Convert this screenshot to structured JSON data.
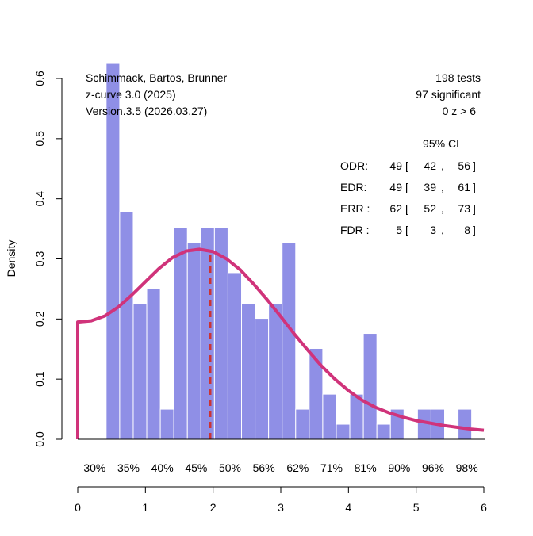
{
  "chart_data": {
    "type": "bar",
    "title": "",
    "xlabel": "",
    "ylabel": "Density",
    "xlim": [
      0,
      6
    ],
    "ylim": [
      0,
      0.6
    ],
    "x_ticks": [
      "0",
      "1",
      "2",
      "3",
      "4",
      "5",
      "6"
    ],
    "y_ticks": [
      "0.0",
      "0.1",
      "0.2",
      "0.3",
      "0.4",
      "0.5",
      "0.6"
    ],
    "grid": false,
    "bar_color": "#8f8fe6",
    "curve_color": "#d0337a",
    "dashed_color": "#cc3333",
    "histogram": {
      "bin_start": 0.42,
      "bin_width": 0.2,
      "values": [
        0.625,
        0.378,
        0.226,
        0.251,
        0.05,
        0.352,
        0.327,
        0.352,
        0.352,
        0.277,
        0.226,
        0.201,
        0.226,
        0.327,
        0.05,
        0.151,
        0.075,
        0.025,
        0.075,
        0.176,
        0.025,
        0.05,
        0,
        0.05,
        0.05,
        0,
        0.05
      ]
    },
    "curve": {
      "x": [
        0,
        0.2,
        0.4,
        0.6,
        0.8,
        1.0,
        1.2,
        1.4,
        1.6,
        1.8,
        2.0,
        2.2,
        2.4,
        2.6,
        2.8,
        3.0,
        3.2,
        3.4,
        3.6,
        3.8,
        4.0,
        4.2,
        4.4,
        4.6,
        4.8,
        5.0,
        5.2,
        5.4,
        5.6,
        5.8,
        6.0
      ],
      "y": [
        0.195,
        0.197,
        0.205,
        0.22,
        0.24,
        0.262,
        0.284,
        0.302,
        0.313,
        0.316,
        0.312,
        0.3,
        0.282,
        0.258,
        0.232,
        0.204,
        0.175,
        0.148,
        0.122,
        0.1,
        0.081,
        0.065,
        0.053,
        0.044,
        0.037,
        0.031,
        0.027,
        0.023,
        0.02,
        0.017,
        0.015
      ]
    },
    "critical_line": {
      "x": 1.96,
      "y_top": 0.311
    },
    "power_labels": {
      "x": [
        0.25,
        0.75,
        1.25,
        1.75,
        2.25,
        2.75,
        3.25,
        3.75,
        4.25,
        4.75,
        5.25,
        5.75
      ],
      "labels": [
        "30%",
        "35%",
        "40%",
        "45%",
        "50%",
        "56%",
        "62%",
        "71%",
        "81%",
        "90%",
        "96%",
        "98%"
      ]
    },
    "annotations_left": [
      "Schimmack, Bartos, Brunner",
      "z-curve 3.0 (2025)",
      "Version.3.5 (2026.03.27)"
    ],
    "annotations_right": [
      "198 tests",
      "97 significant",
      "0 z > 6"
    ],
    "ci_header": "95% CI",
    "ci_rows": [
      {
        "label": "ODR:",
        "est": "49",
        "lo": "42",
        "hi": "56"
      },
      {
        "label": "EDR:",
        "est": "49",
        "lo": "39",
        "hi": "61"
      },
      {
        "label": "ERR :",
        "est": "62",
        "lo": "52",
        "hi": "73"
      },
      {
        "label": "FDR :",
        "est": "5",
        "lo": "3",
        "hi": "8"
      }
    ]
  }
}
